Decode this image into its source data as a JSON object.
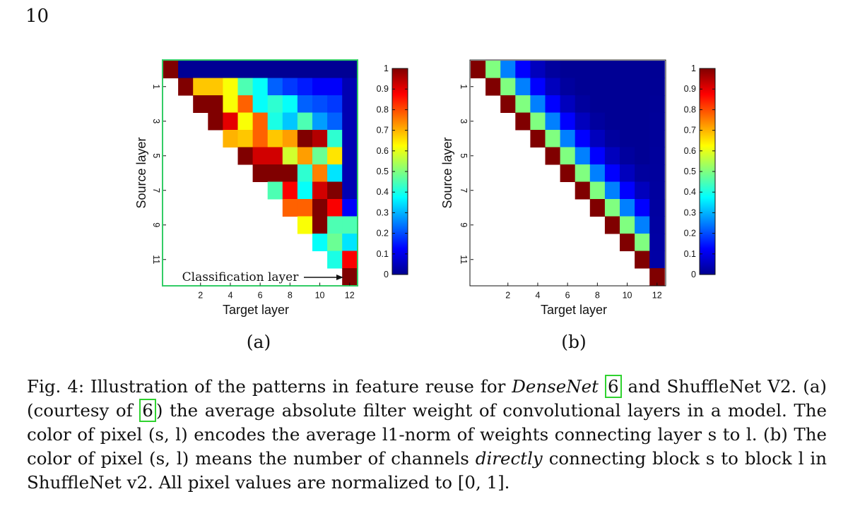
{
  "page": {
    "number": "10"
  },
  "colors": {
    "frame_a": "#33cc66",
    "citation_box": "#2fd22f",
    "background": "#ffffff"
  },
  "chart_data": [
    {
      "id": "a",
      "type": "heatmap",
      "panel_label": "(a)",
      "xlabel": "Target layer",
      "ylabel": "Source layer",
      "x_ticks": [
        "2",
        "4",
        "6",
        "8",
        "10",
        "12"
      ],
      "y_ticks": [
        "1",
        "3",
        "5",
        "7",
        "9",
        "11"
      ],
      "colorbar_ticks": [
        "1",
        "0.9",
        "0.8",
        "0.7",
        "0.6",
        "0.5",
        "0.4",
        "0.3",
        "0.2",
        "0.1",
        "0"
      ],
      "range": [
        0,
        1
      ],
      "annotation": "Classification layer",
      "values": [
        [
          1.0,
          0.02,
          0.02,
          0.02,
          0.02,
          0.02,
          0.02,
          0.02,
          0.02,
          0.02,
          0.02,
          0.02,
          0.02
        ],
        [
          null,
          1.0,
          0.68,
          0.68,
          0.62,
          0.45,
          0.38,
          0.22,
          0.18,
          0.15,
          0.12,
          0.12,
          0.05
        ],
        [
          null,
          null,
          1.0,
          1.0,
          0.62,
          0.78,
          0.38,
          0.42,
          0.38,
          0.22,
          0.2,
          0.18,
          0.05
        ],
        [
          null,
          null,
          null,
          1.0,
          0.9,
          0.62,
          0.78,
          0.4,
          0.32,
          0.45,
          0.28,
          0.22,
          0.05
        ],
        [
          null,
          null,
          null,
          null,
          0.7,
          0.68,
          0.78,
          0.68,
          0.72,
          1.0,
          0.95,
          0.42,
          0.05
        ],
        [
          null,
          null,
          null,
          null,
          null,
          1.0,
          0.92,
          0.92,
          0.58,
          0.72,
          0.48,
          0.65,
          0.05
        ],
        [
          null,
          null,
          null,
          null,
          null,
          null,
          1.0,
          1.0,
          1.0,
          0.42,
          0.75,
          0.35,
          0.05
        ],
        [
          null,
          null,
          null,
          null,
          null,
          null,
          null,
          0.45,
          0.88,
          0.38,
          0.92,
          1.0,
          0.05
        ],
        [
          null,
          null,
          null,
          null,
          null,
          null,
          null,
          null,
          0.78,
          0.78,
          1.0,
          0.88,
          0.12
        ],
        [
          null,
          null,
          null,
          null,
          null,
          null,
          null,
          null,
          null,
          0.62,
          1.0,
          0.45,
          0.45
        ],
        [
          null,
          null,
          null,
          null,
          null,
          null,
          null,
          null,
          null,
          null,
          0.38,
          0.48,
          0.35
        ],
        [
          null,
          null,
          null,
          null,
          null,
          null,
          null,
          null,
          null,
          null,
          null,
          0.4,
          0.88
        ],
        [
          null,
          null,
          null,
          null,
          null,
          null,
          null,
          null,
          null,
          null,
          null,
          null,
          1.0
        ]
      ]
    },
    {
      "id": "b",
      "type": "heatmap",
      "panel_label": "(b)",
      "xlabel": "Target layer",
      "ylabel": "Source layer",
      "x_ticks": [
        "2",
        "4",
        "6",
        "8",
        "10",
        "12"
      ],
      "y_ticks": [
        "1",
        "3",
        "5",
        "7",
        "9",
        "11"
      ],
      "colorbar_ticks": [
        "1",
        "0.9",
        "0.8",
        "0.7",
        "0.6",
        "0.5",
        "0.4",
        "0.3",
        "0.2",
        "0.1",
        "0"
      ],
      "range": [
        0,
        1
      ],
      "diagonal_profile": [
        1.0,
        0.5,
        0.25,
        0.125,
        0.06,
        0.03
      ],
      "matrix_size": 13
    }
  ],
  "caption": {
    "label": "Fig. 4:",
    "t1": "Illustration of the patterns in feature reuse for",
    "densenet": "DenseNet",
    "ref": "6",
    "t2": "and ShuffleNet V2. (a) (courtesy of",
    "t3": ") the average absolute filter weight of convolutional layers in a model. The color of pixel (s, l) encodes the average l1-norm of weights connecting layer s to l. (b) The color of pixel (s, l) means the number of channels",
    "directly": "directly",
    "t4": "connecting block s to block l in ShuffleNet v2. All pixel values are normalized to [0, 1]."
  }
}
